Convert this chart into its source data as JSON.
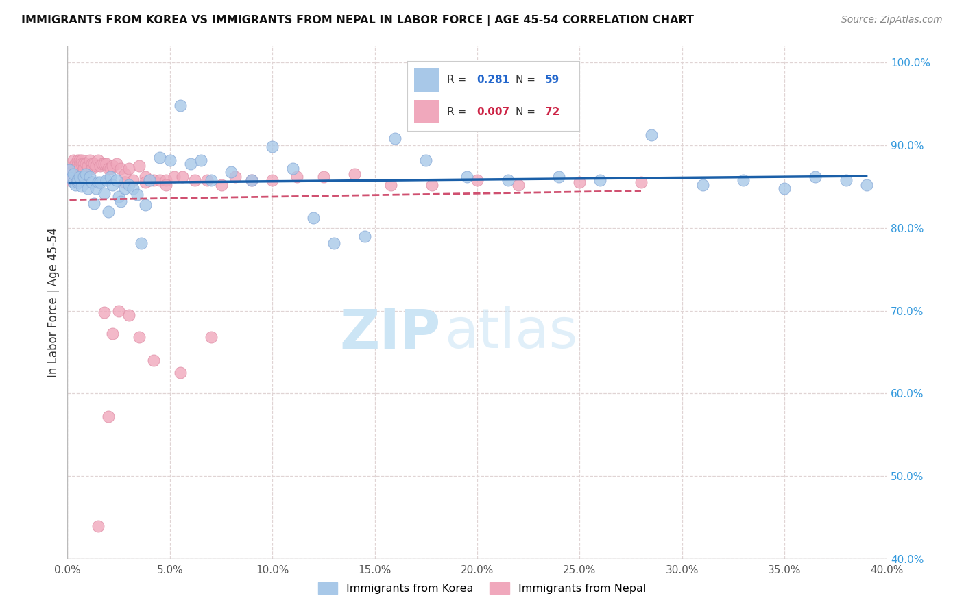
{
  "title": "IMMIGRANTS FROM KOREA VS IMMIGRANTS FROM NEPAL IN LABOR FORCE | AGE 45-54 CORRELATION CHART",
  "source": "Source: ZipAtlas.com",
  "ylabel": "In Labor Force | Age 45-54",
  "korea_R": 0.281,
  "korea_N": 59,
  "nepal_R": 0.007,
  "nepal_N": 72,
  "korea_color": "#a8c8e8",
  "nepal_color": "#f0a8bc",
  "korea_edge_color": "#88aad8",
  "nepal_edge_color": "#e090a8",
  "korea_line_color": "#1a5fa8",
  "nepal_line_color": "#d05070",
  "background_color": "#ffffff",
  "grid_color": "#e0d4d4",
  "xlim": [
    0.0,
    0.4
  ],
  "ylim": [
    0.4,
    1.02
  ],
  "xticks": [
    0.0,
    0.05,
    0.1,
    0.15,
    0.2,
    0.25,
    0.3,
    0.35,
    0.4
  ],
  "yticks": [
    0.4,
    0.5,
    0.6,
    0.7,
    0.8,
    0.9,
    1.0
  ],
  "korea_x": [
    0.001,
    0.002,
    0.003,
    0.003,
    0.004,
    0.005,
    0.005,
    0.006,
    0.007,
    0.008,
    0.009,
    0.01,
    0.011,
    0.012,
    0.013,
    0.014,
    0.015,
    0.016,
    0.018,
    0.019,
    0.02,
    0.021,
    0.022,
    0.024,
    0.025,
    0.026,
    0.028,
    0.03,
    0.032,
    0.034,
    0.036,
    0.038,
    0.04,
    0.045,
    0.05,
    0.055,
    0.06,
    0.065,
    0.07,
    0.08,
    0.09,
    0.1,
    0.11,
    0.12,
    0.13,
    0.145,
    0.16,
    0.175,
    0.195,
    0.215,
    0.24,
    0.26,
    0.285,
    0.31,
    0.33,
    0.35,
    0.365,
    0.38,
    0.39
  ],
  "korea_y": [
    0.87,
    0.86,
    0.855,
    0.865,
    0.852,
    0.855,
    0.858,
    0.862,
    0.85,
    0.862,
    0.865,
    0.848,
    0.862,
    0.855,
    0.83,
    0.848,
    0.855,
    0.855,
    0.842,
    0.858,
    0.82,
    0.862,
    0.852,
    0.858,
    0.838,
    0.832,
    0.848,
    0.852,
    0.848,
    0.84,
    0.782,
    0.828,
    0.858,
    0.885,
    0.882,
    0.948,
    0.878,
    0.882,
    0.858,
    0.868,
    0.858,
    0.898,
    0.872,
    0.812,
    0.782,
    0.79,
    0.908,
    0.882,
    0.862,
    0.858,
    0.862,
    0.858,
    0.912,
    0.852,
    0.858,
    0.848,
    0.862,
    0.858,
    0.852
  ],
  "nepal_x": [
    0.001,
    0.001,
    0.002,
    0.002,
    0.003,
    0.003,
    0.004,
    0.004,
    0.005,
    0.005,
    0.006,
    0.006,
    0.007,
    0.007,
    0.008,
    0.008,
    0.009,
    0.01,
    0.011,
    0.012,
    0.012,
    0.013,
    0.014,
    0.015,
    0.016,
    0.017,
    0.018,
    0.019,
    0.02,
    0.021,
    0.022,
    0.024,
    0.026,
    0.028,
    0.03,
    0.032,
    0.035,
    0.038,
    0.04,
    0.042,
    0.045,
    0.048,
    0.052,
    0.056,
    0.062,
    0.068,
    0.075,
    0.082,
    0.09,
    0.1,
    0.112,
    0.125,
    0.14,
    0.158,
    0.178,
    0.2,
    0.22,
    0.25,
    0.28,
    0.025,
    0.018,
    0.03,
    0.022,
    0.035,
    0.042,
    0.055,
    0.07,
    0.038,
    0.048,
    0.028,
    0.02,
    0.015
  ],
  "nepal_y": [
    0.862,
    0.858,
    0.872,
    0.868,
    0.875,
    0.882,
    0.872,
    0.878,
    0.882,
    0.875,
    0.882,
    0.875,
    0.882,
    0.878,
    0.878,
    0.872,
    0.878,
    0.875,
    0.882,
    0.878,
    0.872,
    0.878,
    0.875,
    0.882,
    0.875,
    0.878,
    0.878,
    0.878,
    0.872,
    0.872,
    0.875,
    0.878,
    0.872,
    0.865,
    0.872,
    0.858,
    0.875,
    0.862,
    0.858,
    0.858,
    0.858,
    0.858,
    0.862,
    0.862,
    0.858,
    0.858,
    0.852,
    0.862,
    0.858,
    0.858,
    0.862,
    0.862,
    0.865,
    0.852,
    0.852,
    0.858,
    0.852,
    0.855,
    0.855,
    0.7,
    0.698,
    0.695,
    0.672,
    0.668,
    0.64,
    0.625,
    0.668,
    0.855,
    0.852,
    0.855,
    0.572,
    0.44
  ]
}
